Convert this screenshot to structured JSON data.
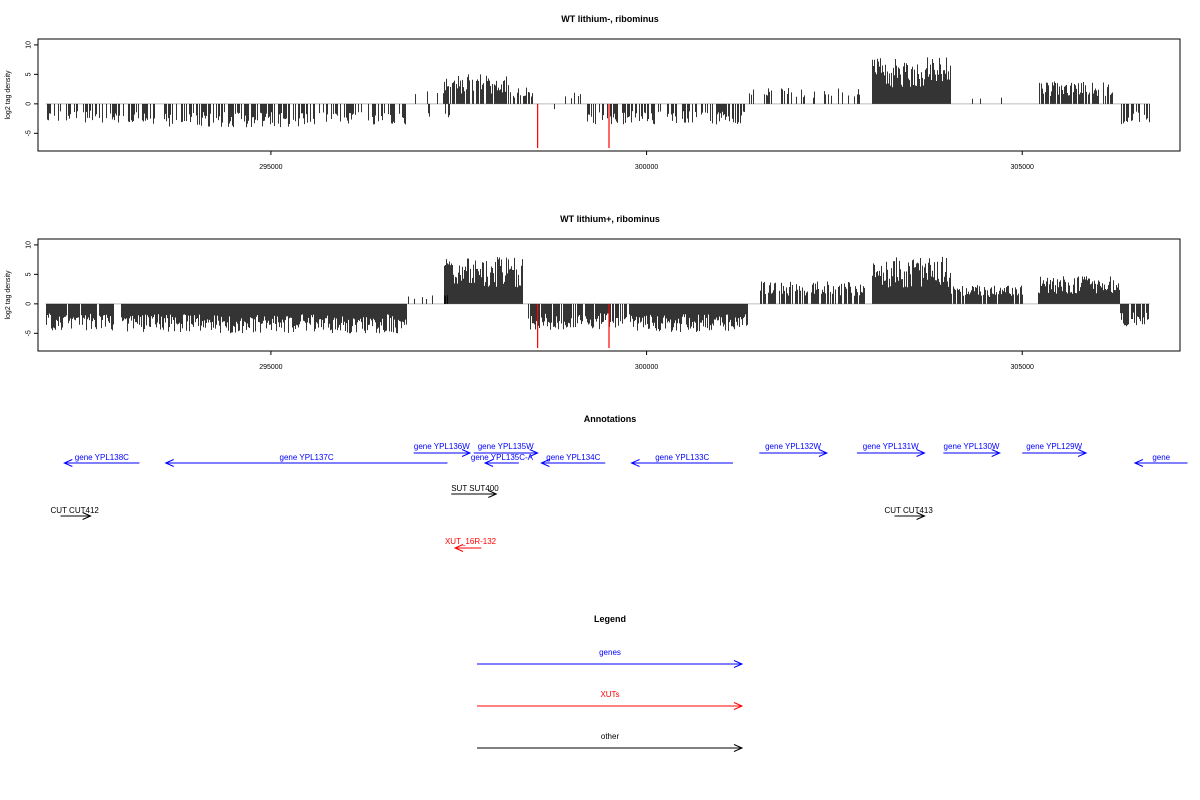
{
  "chart_data": [
    {
      "type": "bar",
      "title": "WT lithium-, ribominus",
      "ylabel": "log2 tag density",
      "ylim": [
        -8,
        11
      ],
      "xlim": [
        291900,
        307100
      ],
      "yticks": [
        -5,
        0,
        5,
        10
      ],
      "xticks": [
        295000,
        300000,
        305000
      ],
      "ytick_labels": [
        "-5",
        "0",
        "5",
        "10"
      ],
      "xtick_labels": [
        "295000",
        "300000",
        "305000"
      ],
      "baseline_color": "#bbbbbb",
      "bar_color": "#000000",
      "highlight_color": "#ff0000",
      "highlights": [
        {
          "x": 298550,
          "y": -7.5
        },
        {
          "x": 299500,
          "y": -7.5
        }
      ],
      "segments": [
        {
          "from": 292000,
          "to": 293400,
          "sign": -1,
          "amp": 3.2,
          "density": 0.45
        },
        {
          "from": 293400,
          "to": 295400,
          "sign": -1,
          "amp": 4.0,
          "density": 0.6
        },
        {
          "from": 295400,
          "to": 296800,
          "sign": -1,
          "amp": 3.5,
          "density": 0.5
        },
        {
          "from": 296800,
          "to": 297400,
          "sign": 0,
          "amp": 2.5,
          "density": 0.15
        },
        {
          "from": 297300,
          "to": 298200,
          "sign": 1,
          "amp": 5.0,
          "density": 0.85
        },
        {
          "from": 298200,
          "to": 298500,
          "sign": 1,
          "amp": 3.0,
          "density": 0.55
        },
        {
          "from": 298600,
          "to": 299200,
          "sign": 0,
          "amp": 2.0,
          "density": 0.15
        },
        {
          "from": 299200,
          "to": 301300,
          "sign": -1,
          "amp": 3.5,
          "density": 0.45
        },
        {
          "from": 301300,
          "to": 302900,
          "sign": 1,
          "amp": 2.8,
          "density": 0.25
        },
        {
          "from": 303000,
          "to": 304050,
          "sign": 1,
          "amp": 8.0,
          "density": 1.0
        },
        {
          "from": 304100,
          "to": 305200,
          "sign": 1,
          "amp": 2.0,
          "density": 0.05
        },
        {
          "from": 305200,
          "to": 306200,
          "sign": 1,
          "amp": 3.8,
          "density": 0.7
        },
        {
          "from": 306300,
          "to": 306700,
          "sign": -1,
          "amp": 3.5,
          "density": 0.55
        }
      ]
    },
    {
      "type": "bar",
      "title": "WT lithium+, ribominus",
      "ylabel": "log2 tag density",
      "ylim": [
        -8,
        11
      ],
      "xlim": [
        291900,
        307100
      ],
      "yticks": [
        -5,
        0,
        5,
        10
      ],
      "xticks": [
        295000,
        300000,
        305000
      ],
      "ytick_labels": [
        "-5",
        "0",
        "5",
        "10"
      ],
      "xtick_labels": [
        "295000",
        "300000",
        "305000"
      ],
      "baseline_color": "#bbbbbb",
      "bar_color": "#000000",
      "highlight_color": "#ff0000",
      "highlights": [
        {
          "x": 298550,
          "y": -7.5
        },
        {
          "x": 299500,
          "y": -7.5
        }
      ],
      "segments": [
        {
          "from": 292000,
          "to": 292900,
          "sign": -1,
          "amp": 4.5,
          "density": 0.9
        },
        {
          "from": 293000,
          "to": 296800,
          "sign": -1,
          "amp": 5.0,
          "density": 1.0
        },
        {
          "from": 296800,
          "to": 297400,
          "sign": 1,
          "amp": 2.0,
          "density": 0.25
        },
        {
          "from": 297300,
          "to": 298350,
          "sign": 1,
          "amp": 8.0,
          "density": 1.0
        },
        {
          "from": 298400,
          "to": 299800,
          "sign": -1,
          "amp": 4.5,
          "density": 0.85
        },
        {
          "from": 299800,
          "to": 301350,
          "sign": -1,
          "amp": 5.0,
          "density": 1.0
        },
        {
          "from": 301500,
          "to": 302900,
          "sign": 1,
          "amp": 3.8,
          "density": 0.7
        },
        {
          "from": 303000,
          "to": 304050,
          "sign": 1,
          "amp": 8.0,
          "density": 1.0
        },
        {
          "from": 304050,
          "to": 305000,
          "sign": 1,
          "amp": 3.2,
          "density": 0.85
        },
        {
          "from": 305200,
          "to": 306300,
          "sign": 1,
          "amp": 4.8,
          "density": 1.0
        },
        {
          "from": 306300,
          "to": 306700,
          "sign": -1,
          "amp": 4.0,
          "density": 0.8
        }
      ]
    }
  ],
  "annotations": {
    "title": "Annotations",
    "colors": {
      "genes": "#0000ff",
      "XUTs": "#ff0000",
      "other": "#000000"
    },
    "features": [
      {
        "label": "gene YPL138C",
        "start": 292250,
        "end": 293250,
        "strand": "-",
        "category": "genes",
        "row": "lower"
      },
      {
        "label": "gene YPL137C",
        "start": 293600,
        "end": 297350,
        "strand": "-",
        "category": "genes",
        "row": "lower"
      },
      {
        "label": "gene YPL136W",
        "start": 296900,
        "end": 297650,
        "strand": "+",
        "category": "genes",
        "row": "upper"
      },
      {
        "label": "gene YPL135W",
        "start": 297700,
        "end": 298550,
        "strand": "+",
        "category": "genes",
        "row": "upper"
      },
      {
        "label": "gene YPL135C-A",
        "start": 297850,
        "end": 298300,
        "strand": "-",
        "category": "genes",
        "row": "lower"
      },
      {
        "label": "gene YPL134C",
        "start": 298600,
        "end": 299450,
        "strand": "-",
        "category": "genes",
        "row": "lower"
      },
      {
        "label": "gene YPL133C",
        "start": 299800,
        "end": 301150,
        "strand": "-",
        "category": "genes",
        "row": "lower"
      },
      {
        "label": "gene YPL132W",
        "start": 301500,
        "end": 302400,
        "strand": "+",
        "category": "genes",
        "row": "upper"
      },
      {
        "label": "gene YPL131W",
        "start": 302800,
        "end": 303700,
        "strand": "+",
        "category": "genes",
        "row": "upper"
      },
      {
        "label": "gene YPL130W",
        "start": 303950,
        "end": 304700,
        "strand": "+",
        "category": "genes",
        "row": "upper"
      },
      {
        "label": "gene YPL129W",
        "start": 305000,
        "end": 305850,
        "strand": "+",
        "category": "genes",
        "row": "upper"
      },
      {
        "label": "gene",
        "start": 306500,
        "end": 307200,
        "strand": "-",
        "category": "genes",
        "row": "lower"
      },
      {
        "label": "SUT SUT400",
        "start": 297400,
        "end": 298000,
        "strand": "+",
        "category": "other",
        "row": "sut"
      },
      {
        "label": "CUT CUT412",
        "start": 292200,
        "end": 292600,
        "strand": "+",
        "category": "other",
        "row": "cut"
      },
      {
        "label": "CUT CUT413",
        "start": 303300,
        "end": 303700,
        "strand": "+",
        "category": "other",
        "row": "cut"
      },
      {
        "label": "XUT_16R-132",
        "start": 297450,
        "end": 297800,
        "strand": "-",
        "category": "XUTs",
        "row": "xut"
      }
    ]
  },
  "legend": {
    "title": "Legend",
    "items": [
      {
        "label": "genes",
        "color": "#0000ff"
      },
      {
        "label": "XUTs",
        "color": "#ff0000"
      },
      {
        "label": "other",
        "color": "#000000"
      }
    ]
  }
}
